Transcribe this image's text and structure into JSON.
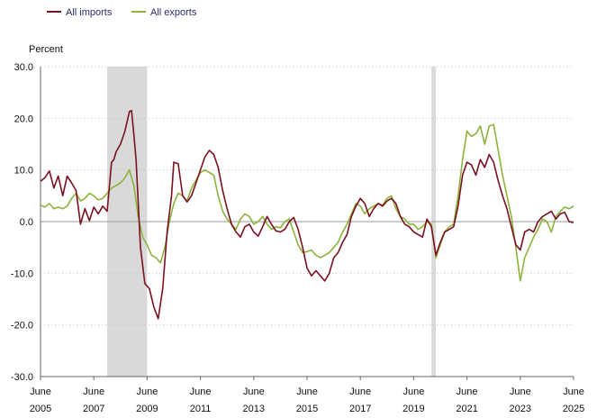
{
  "chart_data": {
    "type": "line",
    "title": "",
    "ylabel": "Percent",
    "xlabel": "",
    "ylim": [
      -30,
      30
    ],
    "x_ticks": [
      {
        "month": "June",
        "year": "2005"
      },
      {
        "month": "June",
        "year": "2007"
      },
      {
        "month": "June",
        "year": "2009"
      },
      {
        "month": "June",
        "year": "2011"
      },
      {
        "month": "June",
        "year": "2013"
      },
      {
        "month": "June",
        "year": "2015"
      },
      {
        "month": "June",
        "year": "2017"
      },
      {
        "month": "June",
        "year": "2019"
      },
      {
        "month": "June",
        "year": "2021"
      },
      {
        "month": "June",
        "year": "2023"
      },
      {
        "month": "June",
        "year": "2025"
      }
    ],
    "y_ticks": [
      "30.0",
      "20.0",
      "10.0",
      "0.0",
      "-10.0",
      "-20.0",
      "-30.0"
    ],
    "legend_position": "top-left",
    "grid": "horizontal dotted",
    "recession_shading": [
      {
        "start": "2007-12",
        "end": "2009-06"
      },
      {
        "start": "2020-02",
        "end": "2020-04"
      }
    ],
    "series": [
      {
        "name": "All imports",
        "color": "#7b1020",
        "points": [
          [
            "2005-06",
            7.8
          ],
          [
            "2005-08",
            8.5
          ],
          [
            "2005-10",
            9.8
          ],
          [
            "2005-12",
            6.5
          ],
          [
            "2006-02",
            8.8
          ],
          [
            "2006-04",
            5.0
          ],
          [
            "2006-06",
            8.8
          ],
          [
            "2006-08",
            7.5
          ],
          [
            "2006-10",
            6.0
          ],
          [
            "2006-12",
            -0.5
          ],
          [
            "2007-02",
            2.5
          ],
          [
            "2007-04",
            0.2
          ],
          [
            "2007-06",
            2.8
          ],
          [
            "2007-08",
            1.5
          ],
          [
            "2007-10",
            3.0
          ],
          [
            "2007-12",
            2.0
          ],
          [
            "2008-02",
            11.5
          ],
          [
            "2008-03",
            12.0
          ],
          [
            "2008-04",
            13.5
          ],
          [
            "2008-06",
            15.0
          ],
          [
            "2008-08",
            17.5
          ],
          [
            "2008-10",
            21.3
          ],
          [
            "2008-11",
            21.5
          ],
          [
            "2008-12",
            17.0
          ],
          [
            "2009-01",
            12.0
          ],
          [
            "2009-03",
            -5.0
          ],
          [
            "2009-05",
            -12.0
          ],
          [
            "2009-07",
            -13.0
          ],
          [
            "2009-09",
            -16.5
          ],
          [
            "2009-11",
            -18.8
          ],
          [
            "2010-01",
            -13.0
          ],
          [
            "2010-03",
            -2.0
          ],
          [
            "2010-05",
            5.0
          ],
          [
            "2010-06",
            11.5
          ],
          [
            "2010-08",
            11.2
          ],
          [
            "2010-10",
            5.0
          ],
          [
            "2010-12",
            3.8
          ],
          [
            "2011-02",
            5.0
          ],
          [
            "2011-04",
            7.5
          ],
          [
            "2011-06",
            10.0
          ],
          [
            "2011-08",
            12.5
          ],
          [
            "2011-10",
            13.8
          ],
          [
            "2011-12",
            13.0
          ],
          [
            "2012-02",
            10.5
          ],
          [
            "2012-04",
            6.0
          ],
          [
            "2012-06",
            2.5
          ],
          [
            "2012-08",
            -0.5
          ],
          [
            "2012-10",
            -2.0
          ],
          [
            "2012-12",
            -3.0
          ],
          [
            "2013-02",
            -1.0
          ],
          [
            "2013-04",
            -0.5
          ],
          [
            "2013-06",
            -2.0
          ],
          [
            "2013-08",
            -2.8
          ],
          [
            "2013-10",
            -1.0
          ],
          [
            "2013-12",
            1.0
          ],
          [
            "2014-02",
            -0.5
          ],
          [
            "2014-04",
            -1.8
          ],
          [
            "2014-06",
            -2.0
          ],
          [
            "2014-08",
            -1.5
          ],
          [
            "2014-10",
            0.0
          ],
          [
            "2014-12",
            0.8
          ],
          [
            "2015-02",
            -1.5
          ],
          [
            "2015-04",
            -5.0
          ],
          [
            "2015-06",
            -9.0
          ],
          [
            "2015-08",
            -10.5
          ],
          [
            "2015-10",
            -9.5
          ],
          [
            "2015-12",
            -10.5
          ],
          [
            "2016-02",
            -11.5
          ],
          [
            "2016-04",
            -10.0
          ],
          [
            "2016-06",
            -7.0
          ],
          [
            "2016-08",
            -6.0
          ],
          [
            "2016-10",
            -4.0
          ],
          [
            "2016-12",
            -2.5
          ],
          [
            "2017-02",
            1.0
          ],
          [
            "2017-04",
            3.0
          ],
          [
            "2017-06",
            4.5
          ],
          [
            "2017-08",
            3.5
          ],
          [
            "2017-10",
            1.0
          ],
          [
            "2017-12",
            2.5
          ],
          [
            "2018-02",
            3.5
          ],
          [
            "2018-04",
            3.0
          ],
          [
            "2018-06",
            4.0
          ],
          [
            "2018-08",
            4.5
          ],
          [
            "2018-10",
            3.5
          ],
          [
            "2018-12",
            1.0
          ],
          [
            "2019-02",
            -0.5
          ],
          [
            "2019-04",
            -1.0
          ],
          [
            "2019-06",
            -2.0
          ],
          [
            "2019-08",
            -2.5
          ],
          [
            "2019-10",
            -3.0
          ],
          [
            "2019-12",
            0.5
          ],
          [
            "2020-02",
            -1.0
          ],
          [
            "2020-04",
            -6.5
          ],
          [
            "2020-06",
            -4.0
          ],
          [
            "2020-08",
            -2.0
          ],
          [
            "2020-10",
            -1.5
          ],
          [
            "2020-12",
            -1.0
          ],
          [
            "2021-02",
            3.0
          ],
          [
            "2021-04",
            9.0
          ],
          [
            "2021-06",
            11.5
          ],
          [
            "2021-08",
            11.0
          ],
          [
            "2021-10",
            9.0
          ],
          [
            "2021-12",
            12.0
          ],
          [
            "2022-02",
            10.5
          ],
          [
            "2022-04",
            13.0
          ],
          [
            "2022-06",
            11.5
          ],
          [
            "2022-08",
            8.0
          ],
          [
            "2022-10",
            5.0
          ],
          [
            "2022-12",
            2.5
          ],
          [
            "2023-02",
            -1.0
          ],
          [
            "2023-04",
            -4.5
          ],
          [
            "2023-06",
            -5.5
          ],
          [
            "2023-08",
            -2.0
          ],
          [
            "2023-10",
            -1.5
          ],
          [
            "2023-12",
            -2.0
          ],
          [
            "2024-02",
            0.0
          ],
          [
            "2024-04",
            1.0
          ],
          [
            "2024-06",
            1.5
          ],
          [
            "2024-08",
            2.0
          ],
          [
            "2024-10",
            0.5
          ],
          [
            "2024-12",
            1.5
          ],
          [
            "2025-02",
            1.8
          ],
          [
            "2025-04",
            0.0
          ],
          [
            "2025-06",
            -0.2
          ]
        ]
      },
      {
        "name": "All exports",
        "color": "#8db33a",
        "points": [
          [
            "2005-06",
            3.2
          ],
          [
            "2005-08",
            2.8
          ],
          [
            "2005-10",
            3.5
          ],
          [
            "2005-12",
            2.5
          ],
          [
            "2006-02",
            2.8
          ],
          [
            "2006-04",
            2.5
          ],
          [
            "2006-06",
            3.0
          ],
          [
            "2006-08",
            4.5
          ],
          [
            "2006-10",
            5.5
          ],
          [
            "2006-12",
            4.0
          ],
          [
            "2007-02",
            4.5
          ],
          [
            "2007-04",
            5.5
          ],
          [
            "2007-06",
            5.0
          ],
          [
            "2007-08",
            4.2
          ],
          [
            "2007-10",
            4.5
          ],
          [
            "2007-12",
            5.5
          ],
          [
            "2008-02",
            6.5
          ],
          [
            "2008-04",
            7.0
          ],
          [
            "2008-06",
            7.5
          ],
          [
            "2008-08",
            8.5
          ],
          [
            "2008-10",
            10.0
          ],
          [
            "2008-12",
            7.0
          ],
          [
            "2009-02",
            1.0
          ],
          [
            "2009-04",
            -3.0
          ],
          [
            "2009-06",
            -4.5
          ],
          [
            "2009-08",
            -6.5
          ],
          [
            "2009-10",
            -7.0
          ],
          [
            "2009-12",
            -8.0
          ],
          [
            "2010-02",
            -5.0
          ],
          [
            "2010-04",
            0.0
          ],
          [
            "2010-06",
            3.5
          ],
          [
            "2010-08",
            5.5
          ],
          [
            "2010-10",
            5.0
          ],
          [
            "2010-12",
            4.0
          ],
          [
            "2011-02",
            6.5
          ],
          [
            "2011-04",
            8.0
          ],
          [
            "2011-06",
            9.5
          ],
          [
            "2011-08",
            10.0
          ],
          [
            "2011-10",
            9.5
          ],
          [
            "2011-12",
            9.0
          ],
          [
            "2012-02",
            5.0
          ],
          [
            "2012-04",
            2.0
          ],
          [
            "2012-06",
            0.5
          ],
          [
            "2012-08",
            -0.5
          ],
          [
            "2012-10",
            -1.5
          ],
          [
            "2012-12",
            0.5
          ],
          [
            "2013-02",
            1.5
          ],
          [
            "2013-04",
            1.0
          ],
          [
            "2013-06",
            -0.5
          ],
          [
            "2013-08",
            0.0
          ],
          [
            "2013-10",
            1.0
          ],
          [
            "2013-12",
            -0.5
          ],
          [
            "2014-02",
            -1.5
          ],
          [
            "2014-04",
            -1.0
          ],
          [
            "2014-06",
            -1.2
          ],
          [
            "2014-08",
            0.0
          ],
          [
            "2014-10",
            0.5
          ],
          [
            "2014-12",
            -2.0
          ],
          [
            "2015-02",
            -4.5
          ],
          [
            "2015-04",
            -6.0
          ],
          [
            "2015-06",
            -5.8
          ],
          [
            "2015-08",
            -5.5
          ],
          [
            "2015-10",
            -6.5
          ],
          [
            "2015-12",
            -7.0
          ],
          [
            "2016-02",
            -6.5
          ],
          [
            "2016-04",
            -6.0
          ],
          [
            "2016-06",
            -5.0
          ],
          [
            "2016-08",
            -4.0
          ],
          [
            "2016-10",
            -2.0
          ],
          [
            "2016-12",
            -0.5
          ],
          [
            "2017-02",
            1.5
          ],
          [
            "2017-04",
            3.5
          ],
          [
            "2017-06",
            3.0
          ],
          [
            "2017-08",
            1.5
          ],
          [
            "2017-10",
            2.5
          ],
          [
            "2017-12",
            3.0
          ],
          [
            "2018-02",
            3.5
          ],
          [
            "2018-04",
            3.2
          ],
          [
            "2018-06",
            4.5
          ],
          [
            "2018-08",
            5.0
          ],
          [
            "2018-10",
            2.5
          ],
          [
            "2018-12",
            1.0
          ],
          [
            "2019-02",
            0.5
          ],
          [
            "2019-04",
            -0.5
          ],
          [
            "2019-06",
            -0.5
          ],
          [
            "2019-08",
            -1.5
          ],
          [
            "2019-10",
            -1.0
          ],
          [
            "2019-12",
            0.0
          ],
          [
            "2020-02",
            -0.5
          ],
          [
            "2020-04",
            -7.0
          ],
          [
            "2020-06",
            -4.5
          ],
          [
            "2020-08",
            -2.0
          ],
          [
            "2020-10",
            -1.0
          ],
          [
            "2020-12",
            -0.5
          ],
          [
            "2021-02",
            5.0
          ],
          [
            "2021-04",
            12.0
          ],
          [
            "2021-06",
            17.5
          ],
          [
            "2021-08",
            16.5
          ],
          [
            "2021-10",
            17.0
          ],
          [
            "2021-12",
            18.5
          ],
          [
            "2022-02",
            15.0
          ],
          [
            "2022-04",
            18.5
          ],
          [
            "2022-06",
            18.8
          ],
          [
            "2022-08",
            14.0
          ],
          [
            "2022-10",
            9.0
          ],
          [
            "2022-12",
            5.0
          ],
          [
            "2023-02",
            1.0
          ],
          [
            "2023-04",
            -5.0
          ],
          [
            "2023-06",
            -11.5
          ],
          [
            "2023-08",
            -7.0
          ],
          [
            "2023-10",
            -5.0
          ],
          [
            "2023-12",
            -3.0
          ],
          [
            "2024-02",
            -1.5
          ],
          [
            "2024-04",
            0.5
          ],
          [
            "2024-06",
            0.0
          ],
          [
            "2024-08",
            -2.0
          ],
          [
            "2024-10",
            1.0
          ],
          [
            "2024-12",
            2.0
          ],
          [
            "2025-02",
            2.8
          ],
          [
            "2025-04",
            2.5
          ],
          [
            "2025-06",
            3.0
          ]
        ]
      }
    ]
  }
}
